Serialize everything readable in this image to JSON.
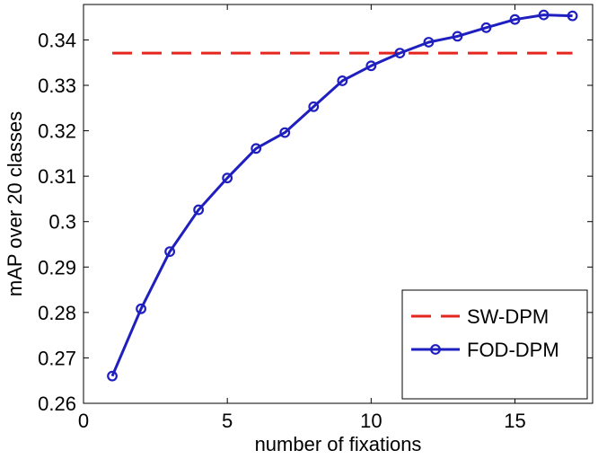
{
  "chart_data": {
    "type": "line",
    "title": "",
    "xlabel": "number of fixations",
    "ylabel": "mAP over 20 classes",
    "xlim": [
      0,
      17.7
    ],
    "ylim": [
      0.26,
      0.3478
    ],
    "xticks": [
      0,
      5,
      10,
      15
    ],
    "xtick_labels": [
      "0",
      "5",
      "10",
      "15"
    ],
    "yticks": [
      0.26,
      0.27,
      0.28,
      0.29,
      0.3,
      0.31,
      0.32,
      0.33,
      0.34
    ],
    "ytick_labels": [
      "0.26",
      "0.27",
      "0.28",
      "0.29",
      "0.3",
      "0.31",
      "0.32",
      "0.33",
      "0.34"
    ],
    "grid": false,
    "legend_position": "bottom-right",
    "series": [
      {
        "name": "SW-DPM",
        "style": "dashed",
        "marker": "none",
        "color": "#e4261f",
        "x": [
          1,
          17
        ],
        "y": [
          0.3371,
          0.3371
        ]
      },
      {
        "name": "FOD-DPM",
        "style": "solid",
        "marker": "circle",
        "color": "#1f1fbf",
        "x": [
          1,
          2,
          3,
          4,
          5,
          6,
          7,
          8,
          9,
          10,
          11,
          12,
          13,
          14,
          15,
          16,
          17
        ],
        "y": [
          0.266,
          0.2808,
          0.2934,
          0.3026,
          0.3096,
          0.3161,
          0.3196,
          0.3253,
          0.331,
          0.3343,
          0.3371,
          0.3395,
          0.3408,
          0.3427,
          0.3445,
          0.3455,
          0.3453
        ]
      }
    ]
  }
}
